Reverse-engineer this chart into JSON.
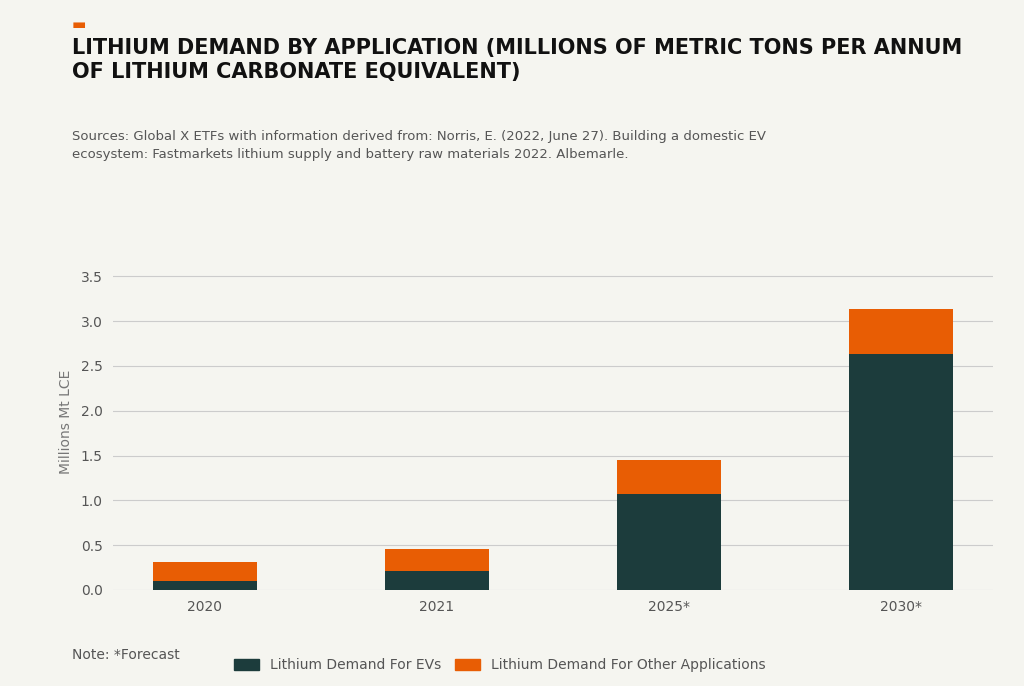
{
  "categories": [
    "2020",
    "2021",
    "2025*",
    "2030*"
  ],
  "ev_values": [
    0.1,
    0.21,
    1.07,
    2.63
  ],
  "other_values": [
    0.21,
    0.25,
    0.38,
    0.5
  ],
  "ev_color": "#1c3c3c",
  "other_color": "#e85d04",
  "ylabel": "Millions Mt LCE",
  "ylim": [
    0,
    3.75
  ],
  "yticks": [
    0.0,
    0.5,
    1.0,
    1.5,
    2.0,
    2.5,
    3.0,
    3.5
  ],
  "legend_ev": "Lithium Demand For EVs",
  "legend_other": "Lithium Demand For Other Applications",
  "note": "Note: *Forecast",
  "accent_color": "#e85d04",
  "background_color": "#f5f5f0",
  "bar_width": 0.45,
  "title_fontsize": 15,
  "subtitle_fontsize": 9.5,
  "axis_fontsize": 10,
  "legend_fontsize": 10,
  "accent_rect": "■",
  "title_line1": "LITHIUM DEMAND BY APPLICATION (MILLIONS OF METRIC TONS PER ANNUM",
  "title_line2": "OF LITHIUM CARBONATE EQUIVALENT)",
  "subtitle_line1": "Sources: Global X ETFs with information derived from: Norris, E. (2022, June 27). Building a domestic EV",
  "subtitle_line2": "ecosystem: Fastmarkets lithium supply and battery raw materials 2022. Albemarle."
}
